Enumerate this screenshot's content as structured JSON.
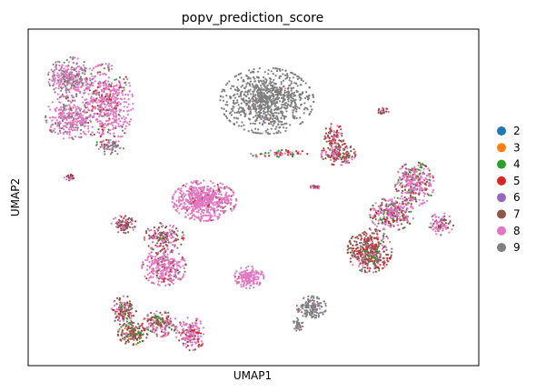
{
  "chart_data": {
    "type": "scatter",
    "title": "popv_prediction_score",
    "xlabel": "UMAP1",
    "ylabel": "UMAP2",
    "xticks": [],
    "yticks": [],
    "grid": false,
    "legend_position": "right",
    "legend": [
      {
        "label": "2",
        "color": "#1f77b4"
      },
      {
        "label": "3",
        "color": "#ff7f0e"
      },
      {
        "label": "4",
        "color": "#2ca02c"
      },
      {
        "label": "5",
        "color": "#d62728"
      },
      {
        "label": "6",
        "color": "#9467bd"
      },
      {
        "label": "7",
        "color": "#8c564b"
      },
      {
        "label": "8",
        "color": "#e377c2"
      },
      {
        "label": "9",
        "color": "#7f7f7f"
      }
    ],
    "clusters": [
      {
        "cx": 0.09,
        "cy": 0.86,
        "rx": 0.045,
        "ry": 0.055,
        "n": 300,
        "mix": {
          "8": 0.6,
          "9": 0.35,
          "7": 0.05
        }
      },
      {
        "cx": 0.17,
        "cy": 0.78,
        "rx": 0.055,
        "ry": 0.11,
        "n": 520,
        "mix": {
          "8": 0.75,
          "7": 0.12,
          "5": 0.06,
          "4": 0.04,
          "9": 0.03
        }
      },
      {
        "cx": 0.09,
        "cy": 0.74,
        "rx": 0.05,
        "ry": 0.06,
        "n": 280,
        "mix": {
          "8": 0.72,
          "9": 0.22,
          "7": 0.06
        }
      },
      {
        "cx": 0.18,
        "cy": 0.65,
        "rx": 0.03,
        "ry": 0.02,
        "n": 60,
        "mix": {
          "9": 0.6,
          "8": 0.3,
          "7": 0.1
        }
      },
      {
        "cx": 0.53,
        "cy": 0.79,
        "rx": 0.095,
        "ry": 0.09,
        "n": 900,
        "mix": {
          "9": 0.97,
          "8": 0.02,
          "7": 0.01
        }
      },
      {
        "cx": 0.68,
        "cy": 0.68,
        "rx": 0.02,
        "ry": 0.04,
        "n": 80,
        "mix": {
          "7": 0.55,
          "8": 0.3,
          "5": 0.15
        }
      },
      {
        "cx": 0.69,
        "cy": 0.63,
        "rx": 0.035,
        "ry": 0.03,
        "n": 150,
        "mix": {
          "7": 0.55,
          "8": 0.3,
          "5": 0.1,
          "4": 0.05
        }
      },
      {
        "cx": 0.56,
        "cy": 0.63,
        "rx": 0.06,
        "ry": 0.012,
        "n": 60,
        "mix": {
          "8": 0.5,
          "4": 0.2,
          "5": 0.15,
          "7": 0.15
        }
      },
      {
        "cx": 0.79,
        "cy": 0.76,
        "rx": 0.012,
        "ry": 0.008,
        "n": 25,
        "mix": {
          "7": 0.6,
          "8": 0.4
        }
      },
      {
        "cx": 0.39,
        "cy": 0.49,
        "rx": 0.065,
        "ry": 0.055,
        "n": 620,
        "mix": {
          "8": 0.92,
          "7": 0.05,
          "5": 0.03
        }
      },
      {
        "cx": 0.3,
        "cy": 0.29,
        "rx": 0.045,
        "ry": 0.05,
        "n": 300,
        "mix": {
          "8": 0.75,
          "7": 0.15,
          "5": 0.06,
          "6": 0.04
        }
      },
      {
        "cx": 0.21,
        "cy": 0.42,
        "rx": 0.025,
        "ry": 0.025,
        "n": 90,
        "mix": {
          "7": 0.45,
          "8": 0.3,
          "6": 0.15,
          "5": 0.1
        }
      },
      {
        "cx": 0.3,
        "cy": 0.38,
        "rx": 0.04,
        "ry": 0.04,
        "n": 160,
        "mix": {
          "7": 0.4,
          "8": 0.4,
          "5": 0.1,
          "4": 0.05,
          "6": 0.05
        }
      },
      {
        "cx": 0.49,
        "cy": 0.26,
        "rx": 0.03,
        "ry": 0.03,
        "n": 180,
        "mix": {
          "8": 0.98,
          "7": 0.02
        }
      },
      {
        "cx": 0.76,
        "cy": 0.34,
        "rx": 0.045,
        "ry": 0.06,
        "n": 420,
        "mix": {
          "7": 0.45,
          "5": 0.22,
          "8": 0.18,
          "4": 0.1,
          "6": 0.05
        }
      },
      {
        "cx": 0.81,
        "cy": 0.45,
        "rx": 0.045,
        "ry": 0.045,
        "n": 300,
        "mix": {
          "8": 0.5,
          "7": 0.25,
          "5": 0.12,
          "4": 0.08,
          "6": 0.05
        }
      },
      {
        "cx": 0.86,
        "cy": 0.54,
        "rx": 0.04,
        "ry": 0.06,
        "n": 300,
        "mix": {
          "8": 0.55,
          "7": 0.2,
          "4": 0.12,
          "5": 0.08,
          "6": 0.05
        }
      },
      {
        "cx": 0.92,
        "cy": 0.42,
        "rx": 0.025,
        "ry": 0.03,
        "n": 90,
        "mix": {
          "8": 0.65,
          "7": 0.2,
          "6": 0.1,
          "5": 0.05
        }
      },
      {
        "cx": 0.64,
        "cy": 0.53,
        "rx": 0.012,
        "ry": 0.008,
        "n": 25,
        "mix": {
          "8": 0.5,
          "7": 0.3,
          "5": 0.2
        }
      },
      {
        "cx": 0.09,
        "cy": 0.56,
        "rx": 0.012,
        "ry": 0.008,
        "n": 25,
        "mix": {
          "8": 0.4,
          "7": 0.4,
          "5": 0.2
        }
      },
      {
        "cx": 0.21,
        "cy": 0.16,
        "rx": 0.025,
        "ry": 0.04,
        "n": 130,
        "mix": {
          "7": 0.55,
          "8": 0.25,
          "4": 0.1,
          "5": 0.1
        }
      },
      {
        "cx": 0.23,
        "cy": 0.09,
        "rx": 0.03,
        "ry": 0.03,
        "n": 160,
        "mix": {
          "7": 0.55,
          "8": 0.2,
          "5": 0.1,
          "4": 0.1,
          "3": 0.05
        }
      },
      {
        "cx": 0.29,
        "cy": 0.12,
        "rx": 0.035,
        "ry": 0.035,
        "n": 170,
        "mix": {
          "8": 0.5,
          "7": 0.3,
          "5": 0.1,
          "4": 0.1
        }
      },
      {
        "cx": 0.36,
        "cy": 0.09,
        "rx": 0.03,
        "ry": 0.045,
        "n": 160,
        "mix": {
          "8": 0.75,
          "7": 0.15,
          "5": 0.1
        }
      },
      {
        "cx": 0.63,
        "cy": 0.17,
        "rx": 0.03,
        "ry": 0.03,
        "n": 150,
        "mix": {
          "9": 0.97,
          "8": 0.03
        }
      },
      {
        "cx": 0.6,
        "cy": 0.12,
        "rx": 0.01,
        "ry": 0.02,
        "n": 35,
        "mix": {
          "9": 0.95,
          "8": 0.05
        }
      }
    ]
  }
}
